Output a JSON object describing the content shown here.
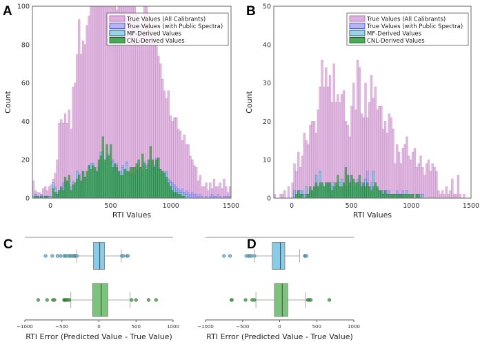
{
  "chart_data": [
    {
      "panel": "A",
      "type": "histogram",
      "xlabel": "RTI Values",
      "ylabel": "Count",
      "xlim": [
        -150,
        1500
      ],
      "ylim": [
        0,
        100
      ],
      "xticks": [
        "0",
        "500",
        "1000",
        "1500"
      ],
      "xtick_values": [
        0,
        500,
        1000,
        1500
      ],
      "yticks": [
        "0",
        "20",
        "40",
        "60",
        "80",
        "100"
      ],
      "ytick_values": [
        0,
        20,
        40,
        60,
        80,
        100
      ],
      "bin_start": -150,
      "bin_width": 16.5,
      "legend_position": "top-right",
      "series": [
        {
          "name": "True Values (All Calibrants)",
          "color": "#d7a3d7",
          "edge": "#b878b8",
          "values": [
            9,
            4,
            3,
            3,
            2,
            5,
            6,
            4,
            6,
            7,
            10,
            13,
            20,
            39,
            41,
            39,
            44,
            39,
            46,
            36,
            58,
            60,
            75,
            93,
            75,
            82,
            80,
            90,
            95,
            100,
            100,
            100,
            100,
            100,
            100,
            100,
            100,
            100,
            100,
            100,
            100,
            100,
            98,
            100,
            100,
            100,
            100,
            100,
            100,
            100,
            100,
            100,
            96,
            95,
            90,
            88,
            100,
            100,
            95,
            88,
            92,
            86,
            80,
            74,
            70,
            62,
            56,
            52,
            56,
            43,
            40,
            42,
            42,
            36,
            35,
            30,
            33,
            28,
            28,
            22,
            20,
            17,
            16,
            9,
            12,
            6,
            6,
            8,
            4,
            8,
            5,
            10,
            6,
            6,
            8,
            5,
            10,
            6,
            3,
            6
          ]
        },
        {
          "name": "True Values (with Public Spectra)",
          "color": "#a8a8f5",
          "edge": "#5a5af0",
          "values": [
            1,
            2,
            1,
            1,
            2,
            1,
            1,
            1,
            1,
            1,
            8,
            6,
            3,
            4,
            5,
            8,
            8,
            9,
            7,
            6,
            9,
            6,
            14,
            13,
            8,
            14,
            11,
            10,
            17,
            18,
            18,
            15,
            13,
            17,
            24,
            24,
            18,
            21,
            23,
            19,
            20,
            16,
            18,
            14,
            14,
            17,
            15,
            19,
            13,
            13,
            13,
            12,
            15,
            14,
            16,
            14,
            19,
            17,
            18,
            15,
            19,
            17,
            21,
            16,
            15,
            13,
            14,
            14,
            10,
            9,
            8,
            7,
            6,
            5,
            4,
            5,
            3,
            4,
            3,
            2,
            3,
            2,
            2,
            1,
            2,
            1,
            0,
            1,
            0,
            1,
            2,
            1,
            1,
            2,
            1,
            0,
            1,
            1,
            1,
            1
          ]
        },
        {
          "name": "MF-Derived Values",
          "color": "#87cde8",
          "edge": "#2f5f6f",
          "values": [
            1,
            2,
            1,
            0,
            1,
            0,
            1,
            1,
            0,
            1,
            8,
            5,
            2,
            3,
            4,
            5,
            8,
            7,
            6,
            3,
            8,
            5,
            14,
            12,
            6,
            14,
            10,
            8,
            16,
            18,
            18,
            14,
            12,
            16,
            24,
            24,
            16,
            20,
            22,
            18,
            19,
            14,
            17,
            12,
            13,
            16,
            14,
            18,
            12,
            12,
            12,
            10,
            14,
            13,
            15,
            12,
            18,
            16,
            17,
            14,
            18,
            16,
            20,
            15,
            14,
            12,
            13,
            13,
            9,
            8,
            6,
            5,
            4,
            3,
            3,
            3,
            2,
            2,
            1,
            0,
            0,
            0,
            0,
            0,
            0,
            0,
            0,
            0,
            0,
            0,
            0,
            0,
            0,
            0,
            0,
            0,
            0,
            0,
            0,
            0
          ]
        },
        {
          "name": "CNL-Derived Values",
          "color": "#2e9a3c",
          "edge": "#1f6e28",
          "values": [
            0,
            1,
            1,
            0,
            1,
            0,
            1,
            1,
            0,
            0,
            5,
            3,
            2,
            4,
            6,
            4,
            11,
            9,
            12,
            4,
            7,
            8,
            10,
            12,
            9,
            14,
            11,
            14,
            17,
            15,
            17,
            16,
            14,
            20,
            22,
            32,
            20,
            28,
            22,
            28,
            16,
            18,
            16,
            14,
            12,
            12,
            15,
            14,
            14,
            16,
            16,
            16,
            18,
            20,
            16,
            23,
            18,
            15,
            20,
            27,
            20,
            16,
            20,
            21,
            15,
            14,
            13,
            11,
            8,
            6,
            4,
            3,
            3,
            2,
            2,
            1,
            1,
            0,
            0,
            0,
            0,
            0,
            0,
            0,
            0,
            0,
            0,
            0,
            0,
            0,
            0,
            0,
            0,
            0,
            0,
            0,
            0,
            0,
            0,
            0
          ]
        }
      ]
    },
    {
      "panel": "B",
      "type": "histogram",
      "xlabel": "RTI Values",
      "ylabel": "Count",
      "xlim": [
        -150,
        1500
      ],
      "ylim": [
        0,
        50
      ],
      "xticks": [
        "0",
        "500",
        "1000",
        "1500"
      ],
      "xtick_values": [
        0,
        500,
        1000,
        1500
      ],
      "yticks": [
        "0",
        "10",
        "20",
        "30",
        "40",
        "50"
      ],
      "ytick_values": [
        0,
        10,
        20,
        30,
        40,
        50
      ],
      "bin_start": -150,
      "bin_width": 16.5,
      "legend_position": "top-right",
      "series": [
        {
          "name": "True Values (All Calibrants)",
          "color": "#d7a3d7",
          "edge": "#b878b8",
          "values": [
            1,
            0,
            0,
            1,
            1,
            2,
            0,
            3,
            0,
            4,
            9,
            7,
            12,
            8,
            11,
            17,
            15,
            14,
            19,
            20,
            20,
            17,
            23,
            29,
            36,
            29,
            34,
            29,
            32,
            25,
            35,
            25,
            27,
            25,
            27,
            28,
            20,
            19,
            16,
            24,
            30,
            23,
            36,
            34,
            22,
            21,
            30,
            21,
            25,
            32,
            26,
            29,
            23,
            24,
            24,
            18,
            20,
            17,
            22,
            21,
            18,
            9,
            14,
            12,
            9,
            13,
            14,
            16,
            11,
            10,
            12,
            13,
            8,
            9,
            11,
            8,
            6,
            9,
            10,
            7,
            9,
            8,
            7,
            2,
            1,
            2,
            1,
            3,
            1,
            2,
            5,
            1,
            1,
            6,
            1,
            0,
            1,
            0,
            0,
            0
          ]
        },
        {
          "name": "True Values (with Public Spectra)",
          "color": "#a8a8f5",
          "edge": "#5a5af0",
          "values": [
            0,
            0,
            0,
            0,
            0,
            0,
            0,
            0,
            0,
            0,
            2,
            1,
            2,
            2,
            2,
            1,
            3,
            1,
            2,
            2,
            3,
            6,
            3,
            7,
            4,
            3,
            4,
            4,
            4,
            3,
            4,
            3,
            4,
            4,
            5,
            3,
            3,
            3,
            6,
            3,
            4,
            3,
            5,
            4,
            4,
            3,
            5,
            7,
            3,
            4,
            7,
            4,
            3,
            2,
            2,
            2,
            2,
            2,
            2,
            1,
            1,
            1,
            2,
            1,
            1,
            2,
            1,
            2,
            1,
            0,
            1,
            0,
            1,
            0,
            1,
            1,
            0,
            0,
            0,
            0,
            0,
            0,
            0,
            0,
            0,
            0,
            0,
            0,
            0,
            0,
            0,
            0,
            0,
            0,
            0,
            0,
            0,
            0,
            0,
            0
          ]
        },
        {
          "name": "MF-Derived Values",
          "color": "#87cde8",
          "edge": "#2f5f6f",
          "values": [
            0,
            0,
            0,
            0,
            0,
            0,
            0,
            0,
            0,
            0,
            2,
            0,
            2,
            2,
            1,
            0,
            3,
            1,
            2,
            1,
            3,
            6,
            2,
            7,
            3,
            3,
            4,
            2,
            4,
            3,
            4,
            2,
            3,
            4,
            5,
            2,
            3,
            2,
            4,
            3,
            4,
            3,
            4,
            4,
            3,
            3,
            5,
            3,
            3,
            2,
            7,
            4,
            2,
            2,
            2,
            1,
            2,
            1,
            1,
            1,
            1,
            0,
            1,
            1,
            1,
            0,
            1,
            2,
            0,
            0,
            1,
            0,
            1,
            0,
            0,
            1,
            0,
            0,
            0,
            0,
            0,
            0,
            0,
            0,
            0,
            0,
            0,
            0,
            0,
            0,
            0,
            0,
            0,
            0,
            0,
            0,
            0,
            0,
            0,
            0
          ]
        },
        {
          "name": "CNL-Derived Values",
          "color": "#2e9a3c",
          "edge": "#1f6e28",
          "values": [
            0,
            0,
            0,
            0,
            0,
            0,
            0,
            0,
            0,
            0,
            0,
            1,
            2,
            1,
            1,
            0,
            1,
            1,
            3,
            2,
            3,
            4,
            3,
            4,
            4,
            3,
            4,
            4,
            4,
            2,
            3,
            4,
            6,
            3,
            3,
            4,
            8,
            6,
            4,
            6,
            5,
            4,
            4,
            6,
            3,
            4,
            3,
            4,
            3,
            2,
            3,
            4,
            3,
            2,
            2,
            1,
            2,
            1,
            1,
            1,
            1,
            1,
            1,
            1,
            1,
            1,
            1,
            1,
            1,
            1,
            1,
            0,
            1,
            1,
            0,
            0,
            0,
            0,
            0,
            0,
            0,
            0,
            0,
            0,
            0,
            0,
            0,
            0,
            0,
            0,
            0,
            0,
            0,
            0,
            0,
            0,
            0,
            0,
            0,
            0
          ]
        }
      ]
    },
    {
      "panel": "C",
      "type": "boxplot",
      "xlabel": "RTI Error (Predicted Value - True Value)",
      "xlim": [
        -1000,
        1000
      ],
      "xticks": [
        "−1000",
        "−500",
        "0",
        "500",
        "1000"
      ],
      "xtick_values": [
        -1000,
        -500,
        0,
        500,
        1000
      ],
      "boxes": [
        {
          "name": "MF-Derived Values",
          "color": "#87cde8",
          "whisker_low": -300,
          "q1": -75,
          "median": 10,
          "q3": 75,
          "whisker_high": 300,
          "outliers": [
            -720,
            -630,
            -560,
            -520,
            -470,
            -450,
            -430,
            -400,
            -380,
            -360,
            -340,
            -320,
            -310,
            -300,
            310,
            330,
            380,
            390
          ]
        },
        {
          "name": "CNL-Derived Values",
          "color": "#7cc47c",
          "whisker_low": -380,
          "q1": -85,
          "median": 30,
          "q3": 120,
          "whisker_high": 420,
          "outliers": [
            -820,
            -700,
            -620,
            -600,
            -470,
            -460,
            -450,
            -440,
            -420,
            -400,
            440,
            500,
            670,
            770
          ]
        }
      ]
    },
    {
      "panel": "D",
      "type": "boxplot",
      "xlabel": "RTI Error (Predicted Value - True Value)",
      "xlim": [
        -1000,
        1000
      ],
      "xticks": [
        "−1000",
        "−500",
        "0",
        "500",
        "1000"
      ],
      "xtick_values": [
        -1000,
        -500,
        0,
        500,
        1000
      ],
      "boxes": [
        {
          "name": "MF-Derived Values",
          "color": "#87cde8",
          "whisker_low": -340,
          "q1": -100,
          "median": 10,
          "q3": 70,
          "whisker_high": 270,
          "outliers": [
            -750,
            -670,
            -450,
            -420,
            -400,
            -380,
            -340,
            340,
            350,
            360
          ]
        },
        {
          "name": "CNL-Derived Values",
          "color": "#7cc47c",
          "whisker_low": -320,
          "q1": -70,
          "median": 35,
          "q3": 110,
          "whisker_high": 350,
          "outliers": [
            -650,
            -645,
            -460,
            -370,
            -340,
            380,
            400,
            420,
            670
          ]
        }
      ]
    }
  ]
}
